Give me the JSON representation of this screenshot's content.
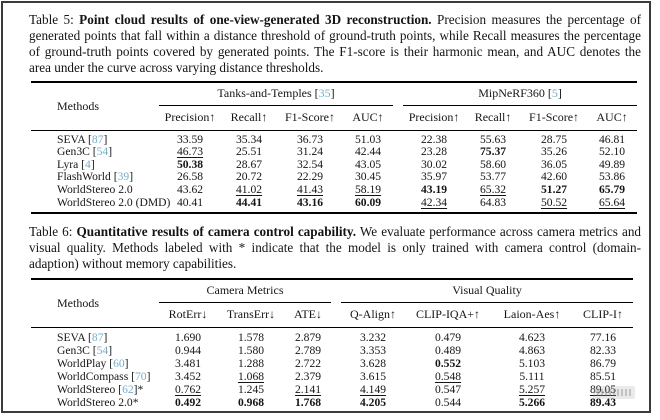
{
  "citation_format": {
    "open": "[",
    "close": "]"
  },
  "link_color": "#76aec7",
  "captions": {
    "table5": {
      "prefix": "Table 5:",
      "bold": "Point cloud results of one-view-generated 3D reconstruction.",
      "rest": "Precision measures the percentage of generated points that fall within a distance threshold of ground-truth points, while Recall measures the percentage of ground-truth points covered by generated points. The F1-score is their harmonic mean, and AUC denotes the area under the curve across varying distance thresholds."
    },
    "table6": {
      "prefix": "Table 6:",
      "bold": "Quantitative results of camera control capability.",
      "rest": "We evaluate performance across camera metrics and visual quality. Methods labeled with * indicate that the model is only trained with camera control (domain-adaption) without memory capabilities."
    }
  },
  "table5": {
    "methods_header": "Methods",
    "gap_index": 4,
    "groups": [
      {
        "label": "Tanks-and-Temples",
        "cite": "35",
        "columns": [
          "Precision↑",
          "Recall↑",
          "F1-Score↑",
          "AUC↑"
        ]
      },
      {
        "label": "MipNeRF360",
        "cite": "5",
        "columns": [
          "Precision↑",
          "Recall↑",
          "F1-Score↑",
          "AUC↑"
        ]
      }
    ],
    "rows": [
      {
        "method": {
          "name": "SEVA",
          "cite": "87",
          "suffix": ""
        },
        "cells": [
          {
            "v": "33.59",
            "f": ""
          },
          {
            "v": "35.34",
            "f": ""
          },
          {
            "v": "36.73",
            "f": ""
          },
          {
            "v": "51.03",
            "f": ""
          },
          {
            "v": "22.38",
            "f": ""
          },
          {
            "v": "55.63",
            "f": ""
          },
          {
            "v": "28.75",
            "f": ""
          },
          {
            "v": "46.81",
            "f": ""
          }
        ]
      },
      {
        "method": {
          "name": "Gen3C",
          "cite": "54",
          "suffix": ""
        },
        "cells": [
          {
            "v": "46.73",
            "f": "u"
          },
          {
            "v": "25.51",
            "f": ""
          },
          {
            "v": "31.24",
            "f": ""
          },
          {
            "v": "42.44",
            "f": ""
          },
          {
            "v": "23.28",
            "f": ""
          },
          {
            "v": "75.37",
            "f": "b"
          },
          {
            "v": "35.26",
            "f": ""
          },
          {
            "v": "52.10",
            "f": ""
          }
        ]
      },
      {
        "method": {
          "name": "Lyra",
          "cite": "4",
          "suffix": ""
        },
        "cells": [
          {
            "v": "50.38",
            "f": "b"
          },
          {
            "v": "28.67",
            "f": ""
          },
          {
            "v": "32.54",
            "f": ""
          },
          {
            "v": "43.05",
            "f": ""
          },
          {
            "v": "30.02",
            "f": ""
          },
          {
            "v": "58.60",
            "f": ""
          },
          {
            "v": "36.05",
            "f": ""
          },
          {
            "v": "49.89",
            "f": ""
          }
        ]
      },
      {
        "method": {
          "name": "FlashWorld",
          "cite": "39",
          "suffix": ""
        },
        "cells": [
          {
            "v": "26.58",
            "f": ""
          },
          {
            "v": "20.72",
            "f": ""
          },
          {
            "v": "22.29",
            "f": ""
          },
          {
            "v": "30.45",
            "f": ""
          },
          {
            "v": "35.97",
            "f": ""
          },
          {
            "v": "53.77",
            "f": ""
          },
          {
            "v": "42.60",
            "f": ""
          },
          {
            "v": "53.86",
            "f": ""
          }
        ]
      },
      {
        "method": {
          "name": "WorldStereo 2.0",
          "cite": null,
          "suffix": ""
        },
        "cells": [
          {
            "v": "43.62",
            "f": ""
          },
          {
            "v": "41.02",
            "f": "u"
          },
          {
            "v": "41.43",
            "f": "u"
          },
          {
            "v": "58.19",
            "f": "u"
          },
          {
            "v": "43.19",
            "f": "b"
          },
          {
            "v": "65.32",
            "f": "u"
          },
          {
            "v": "51.27",
            "f": "b"
          },
          {
            "v": "65.79",
            "f": "b"
          }
        ]
      },
      {
        "method": {
          "name": "WorldStereo 2.0 (DMD)",
          "cite": null,
          "suffix": ""
        },
        "cells": [
          {
            "v": "40.41",
            "f": ""
          },
          {
            "v": "44.41",
            "f": "b"
          },
          {
            "v": "43.16",
            "f": "b"
          },
          {
            "v": "60.09",
            "f": "b"
          },
          {
            "v": "42.34",
            "f": "u"
          },
          {
            "v": "64.83",
            "f": ""
          },
          {
            "v": "50.52",
            "f": "u"
          },
          {
            "v": "65.64",
            "f": "u"
          }
        ]
      }
    ]
  },
  "table6": {
    "methods_header": "Methods",
    "gap_index": 3,
    "groups": [
      {
        "label": "Camera Metrics",
        "columns": [
          "RotErr↓",
          "TransErr↓",
          "ATE↓"
        ]
      },
      {
        "label": "Visual Quality",
        "columns": [
          "Q-Align↑",
          "CLIP-IQA+↑",
          "Laion-Aes↑",
          "CLIP-I↑"
        ]
      }
    ],
    "rows": [
      {
        "method": {
          "name": "SEVA",
          "cite": "87",
          "suffix": ""
        },
        "cells": [
          {
            "v": "1.690",
            "f": ""
          },
          {
            "v": "1.578",
            "f": ""
          },
          {
            "v": "2.879",
            "f": ""
          },
          {
            "v": "3.232",
            "f": ""
          },
          {
            "v": "0.479",
            "f": ""
          },
          {
            "v": "4.623",
            "f": ""
          },
          {
            "v": "77.16",
            "f": ""
          }
        ]
      },
      {
        "method": {
          "name": "Gen3C",
          "cite": "54",
          "suffix": ""
        },
        "cells": [
          {
            "v": "0.944",
            "f": ""
          },
          {
            "v": "1.580",
            "f": ""
          },
          {
            "v": "2.789",
            "f": ""
          },
          {
            "v": "3.353",
            "f": ""
          },
          {
            "v": "0.489",
            "f": ""
          },
          {
            "v": "4.863",
            "f": ""
          },
          {
            "v": "82.33",
            "f": ""
          }
        ]
      },
      {
        "method": {
          "name": "WorldPlay",
          "cite": "60",
          "suffix": ""
        },
        "cells": [
          {
            "v": "3.481",
            "f": ""
          },
          {
            "v": "1.288",
            "f": ""
          },
          {
            "v": "2.722",
            "f": ""
          },
          {
            "v": "3.628",
            "f": ""
          },
          {
            "v": "0.552",
            "f": "b"
          },
          {
            "v": "5.103",
            "f": ""
          },
          {
            "v": "86.79",
            "f": ""
          }
        ]
      },
      {
        "method": {
          "name": "WorldCompass",
          "cite": "70",
          "suffix": ""
        },
        "cells": [
          {
            "v": "3.452",
            "f": ""
          },
          {
            "v": "1.068",
            "f": "u"
          },
          {
            "v": "2.379",
            "f": ""
          },
          {
            "v": "3.615",
            "f": ""
          },
          {
            "v": "0.548",
            "f": "u"
          },
          {
            "v": "5.111",
            "f": ""
          },
          {
            "v": "85.51",
            "f": ""
          }
        ]
      },
      {
        "method": {
          "name": "WorldStereo",
          "cite": "62",
          "suffix": "*"
        },
        "cells": [
          {
            "v": "0.762",
            "f": "u"
          },
          {
            "v": "1.245",
            "f": ""
          },
          {
            "v": "2.141",
            "f": "u"
          },
          {
            "v": "4.149",
            "f": "u"
          },
          {
            "v": "0.547",
            "f": ""
          },
          {
            "v": "5.257",
            "f": "u"
          },
          {
            "v": "89.05",
            "f": "u"
          }
        ]
      },
      {
        "method": {
          "name": "WorldStereo 2.0",
          "cite": null,
          "suffix": "*"
        },
        "cells": [
          {
            "v": "0.492",
            "f": "b"
          },
          {
            "v": "0.968",
            "f": "b"
          },
          {
            "v": "1.768",
            "f": "b"
          },
          {
            "v": "4.205",
            "f": "b"
          },
          {
            "v": "0.544",
            "f": ""
          },
          {
            "v": "5.266",
            "f": "b"
          },
          {
            "v": "89.43",
            "f": "b"
          }
        ]
      }
    ]
  }
}
